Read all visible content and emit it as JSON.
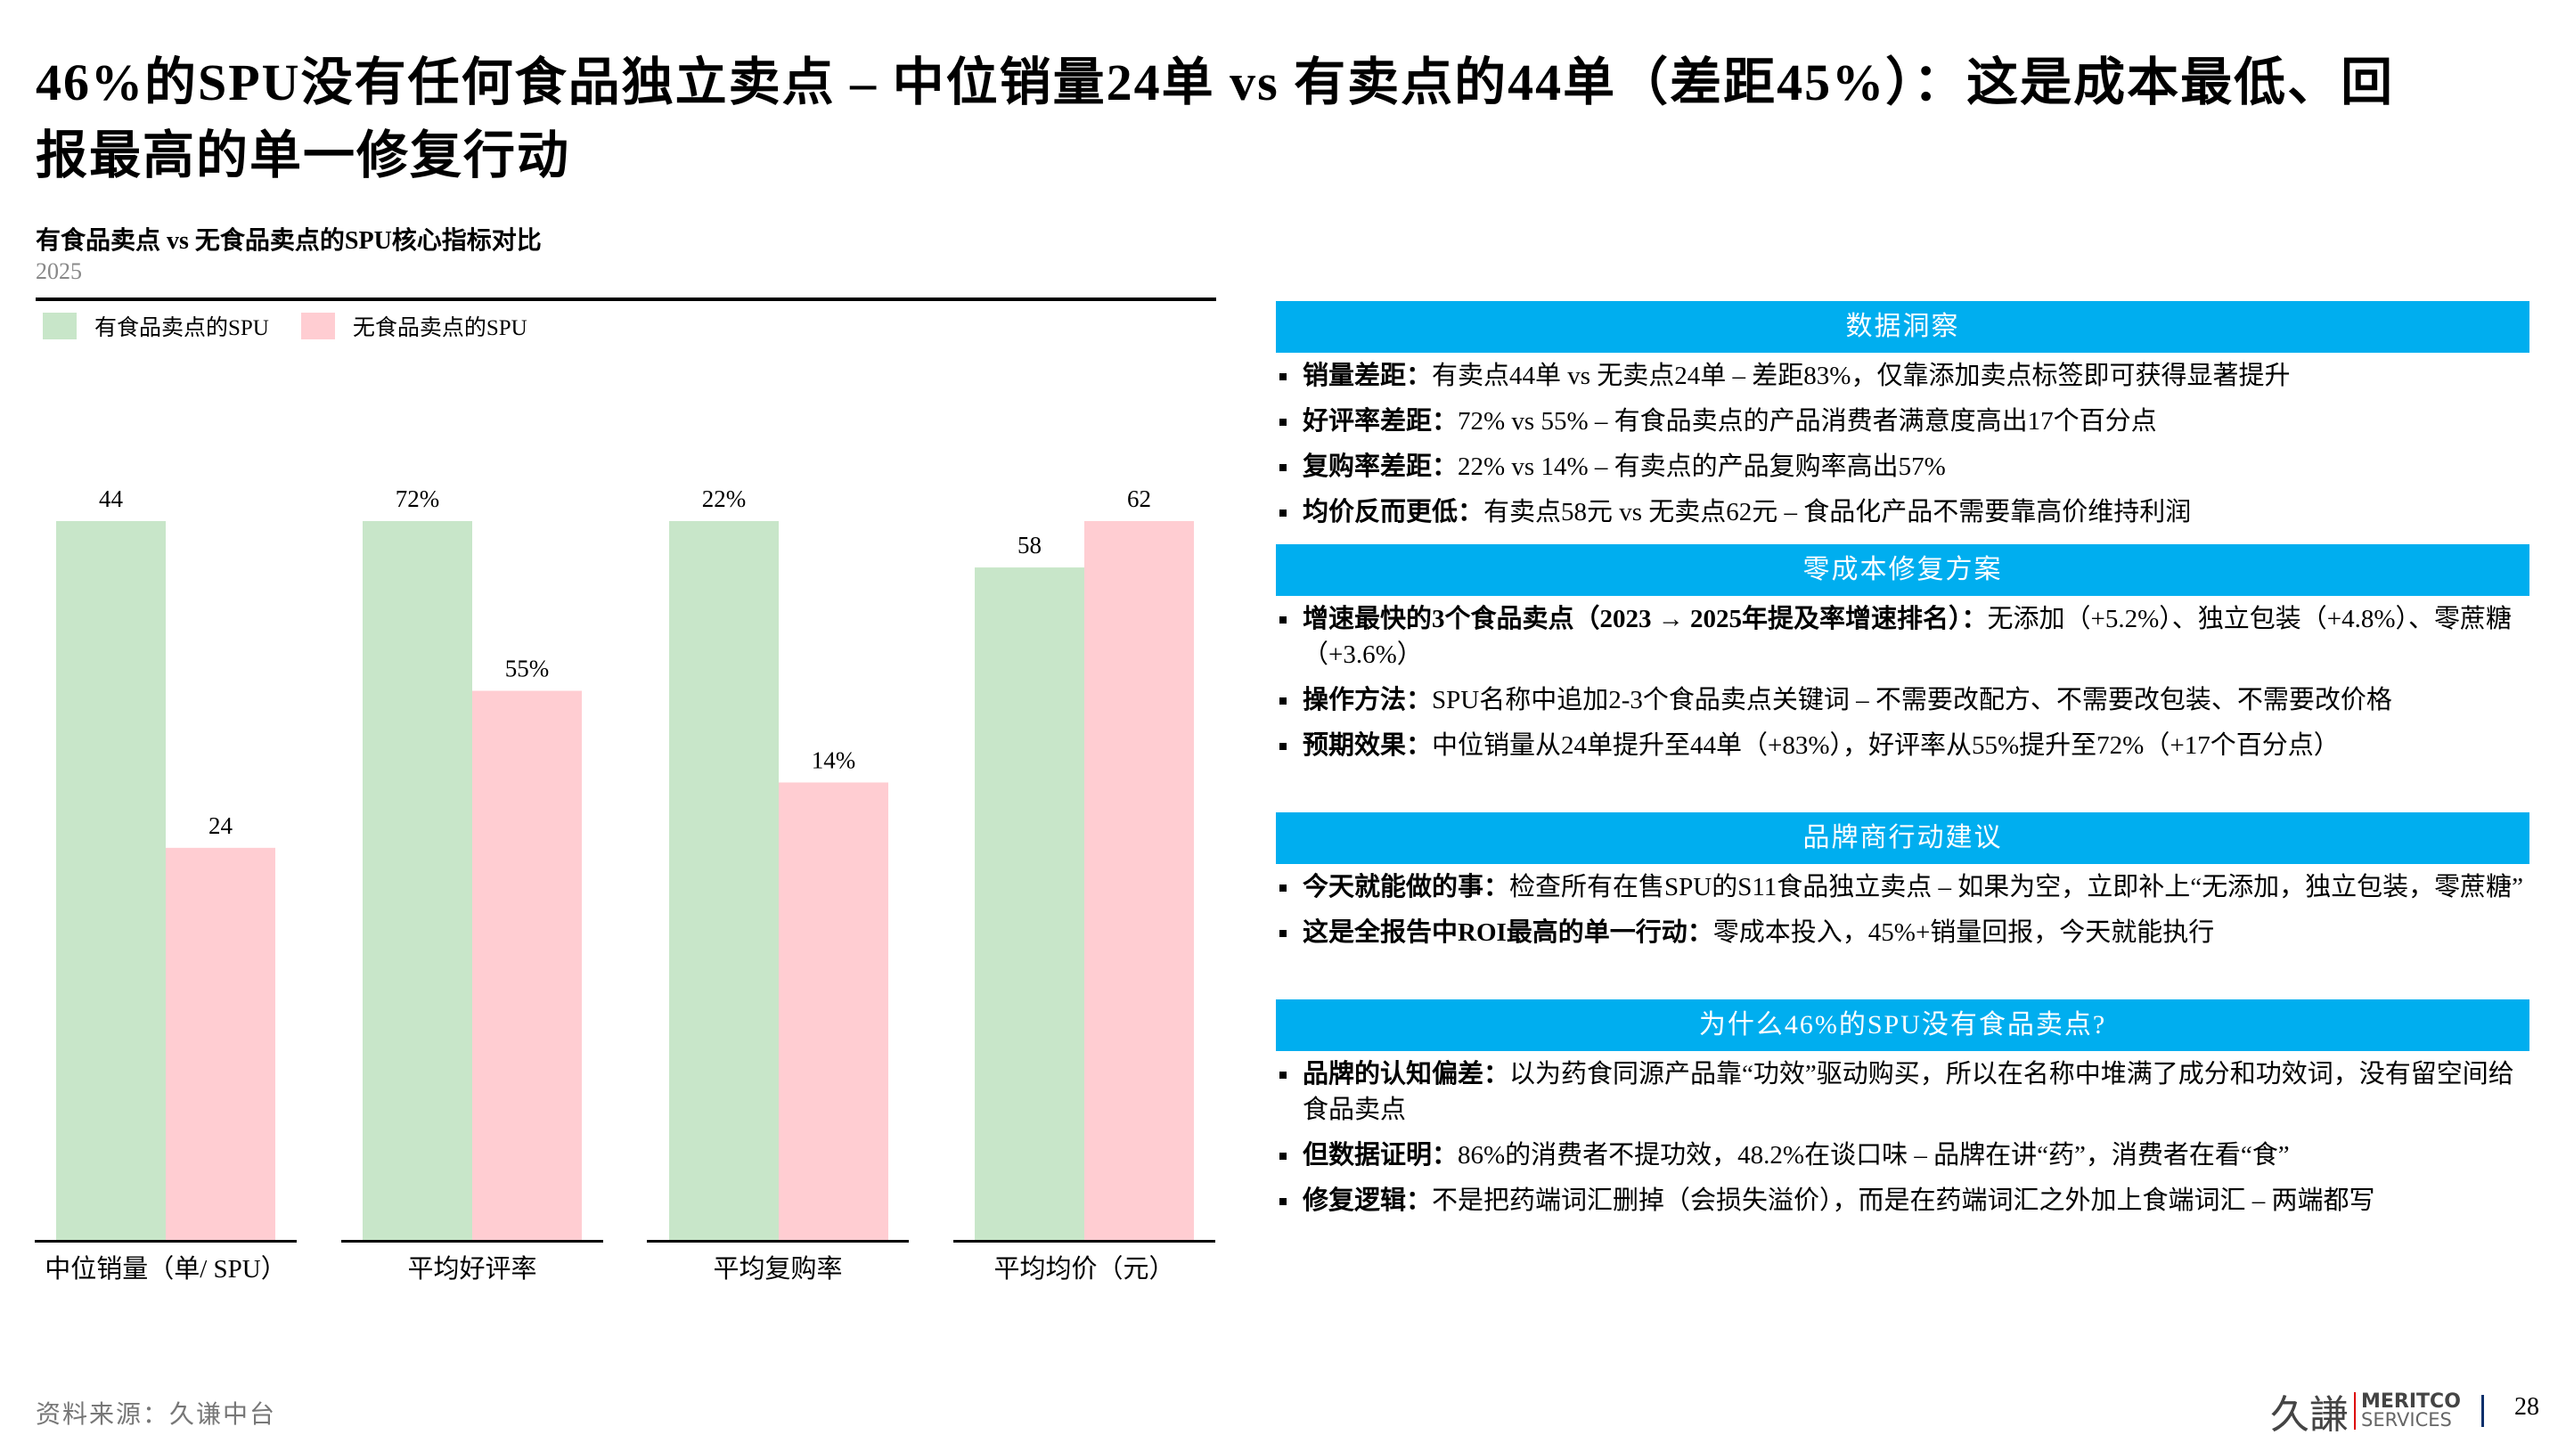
{
  "title": "46%的SPU没有任何食品独立卖点 – 中位销量24单 vs 有卖点的44单（差距45%）：这是成本最低、回报最高的单一修复行动",
  "chart_data": {
    "type": "bar",
    "title": "有食品卖点 vs 无食品卖点的SPU核心指标对比",
    "subtitle": "2025",
    "categories": [
      "中位销量（单/ SPU）",
      "平均好评率",
      "平均复购率",
      "平均均价（元）"
    ],
    "series": [
      {
        "name": "有食品卖点的SPU",
        "color": "#C8E6C9",
        "values": [
          44,
          72,
          22,
          58
        ],
        "labels": [
          "44",
          "72%",
          "22%",
          "58"
        ]
      },
      {
        "name": "无食品卖点的SPU",
        "color": "#FFCDD2",
        "values": [
          24,
          55,
          14,
          62
        ],
        "labels": [
          "24",
          "55%",
          "14%",
          "62"
        ]
      }
    ],
    "scale": "each category normalized to its own maximum",
    "legend": "top-left"
  },
  "sections": [
    {
      "header": "数据洞察",
      "items": [
        {
          "label": "销量差距：",
          "text": "有卖点44单 vs 无卖点24单 – 差距83%，仅靠添加卖点标签即可获得显著提升"
        },
        {
          "label": "好评率差距：",
          "text": "72% vs 55% – 有食品卖点的产品消费者满意度高出17个百分点"
        },
        {
          "label": "复购率差距：",
          "text": "22% vs 14% – 有卖点的产品复购率高出57%"
        },
        {
          "label": "均价反而更低：",
          "text": "有卖点58元 vs 无卖点62元 – 食品化产品不需要靠高价维持利润"
        }
      ]
    },
    {
      "header": "零成本修复方案",
      "items": [
        {
          "label": "增速最快的3个食品卖点（2023 → 2025年提及率增速排名）：",
          "text": "无添加（+5.2%）、独立包装（+4.8%）、零蔗糖（+3.6%）"
        },
        {
          "label": "操作方法：",
          "text": "SPU名称中追加2-3个食品卖点关键词 – 不需要改配方、不需要改包装、不需要改价格"
        },
        {
          "label": "预期效果：",
          "text": "中位销量从24单提升至44单（+83%），好评率从55%提升至72%（+17个百分点）"
        }
      ]
    },
    {
      "header": "品牌商行动建议",
      "items": [
        {
          "label": "今天就能做的事：",
          "text": "检查所有在售SPU的S11食品独立卖点 – 如果为空，立即补上“无添加，独立包装，零蔗糖”"
        },
        {
          "label": "这是全报告中ROI最高的单一行动：",
          "text": "零成本投入，45%+销量回报，今天就能执行"
        }
      ]
    },
    {
      "header": "为什么46%的SPU没有食品卖点?",
      "items": [
        {
          "label": "品牌的认知偏差：",
          "text": "以为药食同源产品靠“功效”驱动购买，所以在名称中堆满了成分和功效词，没有留空间给食品卖点"
        },
        {
          "label": "但数据证明：",
          "text": "86%的消费者不提功效，48.2%在谈口味 – 品牌在讲“药”，消费者在看“食”"
        },
        {
          "label": "修复逻辑：",
          "text": "不是把药端词汇删掉（会损失溢价），而是在药端词汇之外加上食端词汇 – 两端都写"
        }
      ]
    }
  ],
  "footer": {
    "source": "资料来源：久谦中台",
    "logo_cn": "久謙",
    "logo_en1": "MERITCO",
    "logo_en2": "SERVICES",
    "page": "28"
  },
  "colors": {
    "accent": "#00AEEF"
  }
}
